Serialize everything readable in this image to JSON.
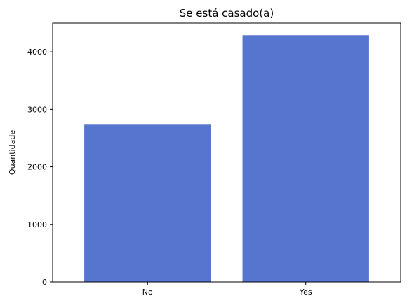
{
  "chart_data": {
    "type": "bar",
    "title": "Se está casado(a)",
    "xlabel": "",
    "ylabel": "Quantidade",
    "categories": [
      "No",
      "Yes"
    ],
    "values": [
      2745,
      4290
    ],
    "ylim": [
      0,
      4500
    ],
    "yticks": [
      0,
      1000,
      2000,
      3000,
      4000
    ],
    "bar_color": "#5675cf",
    "grid": false,
    "legend": "none"
  }
}
